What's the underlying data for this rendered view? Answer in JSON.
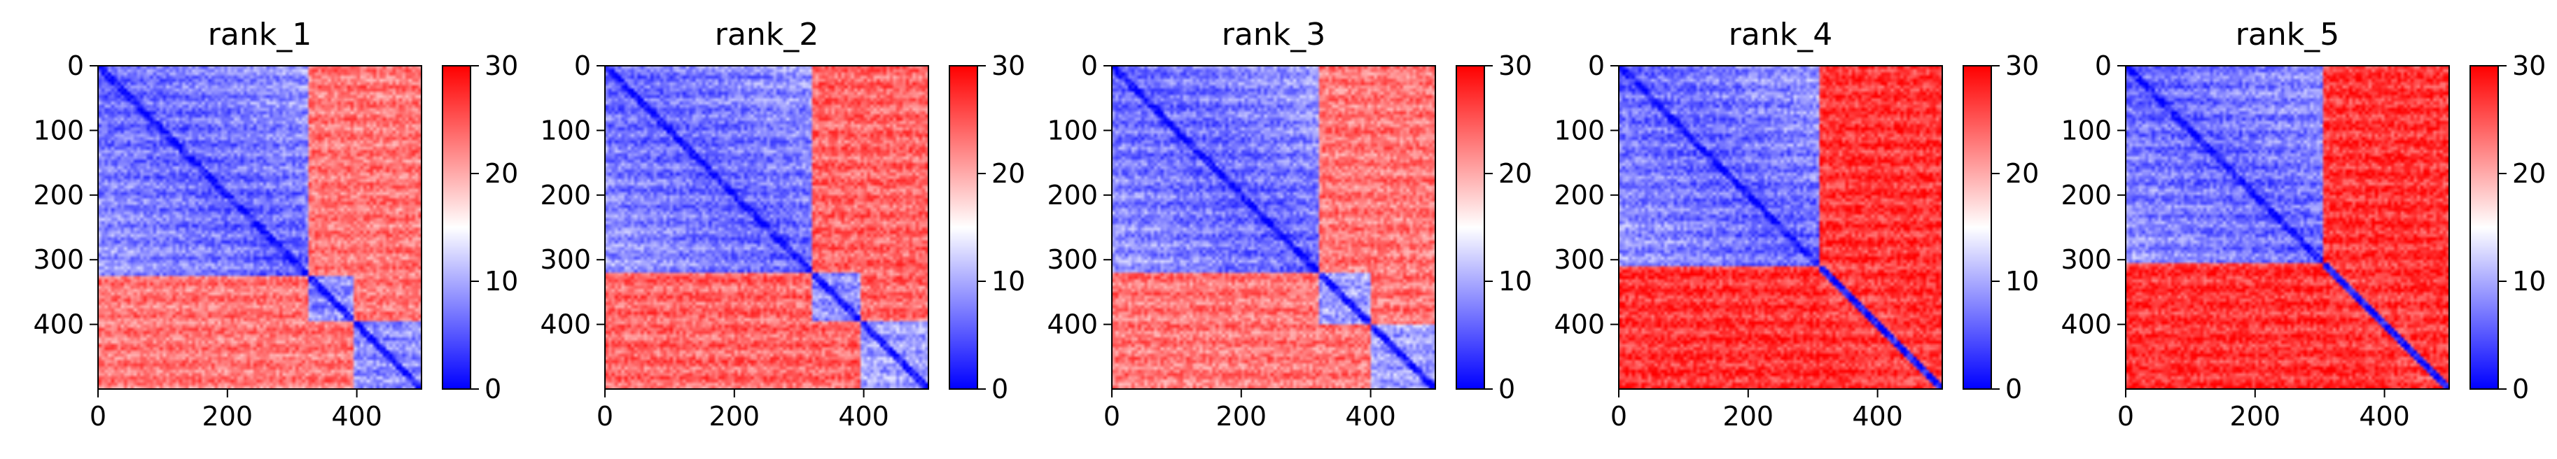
{
  "chart_data": [
    {
      "type": "heatmap",
      "title": "rank_1",
      "x_ticks": [
        "0",
        "200",
        "400"
      ],
      "y_ticks": [
        "0",
        "100",
        "200",
        "300",
        "400"
      ],
      "xlim": [
        0,
        500
      ],
      "ylim": [
        500,
        0
      ],
      "colorbar": {
        "range": [
          0,
          30
        ],
        "ticks": [
          "0",
          "10",
          "20",
          "30"
        ],
        "colormap": "bwr",
        "colors": [
          "#0000ff",
          "#ffffff",
          "#ff0000"
        ]
      },
      "domains": [
        {
          "start": 0,
          "end": 325,
          "level": 6
        },
        {
          "start": 325,
          "end": 395,
          "level": 8
        },
        {
          "start": 395,
          "end": 500,
          "level": 8
        }
      ],
      "inter_domain_level": 23,
      "value_at_a_glance": "block 0-325 low (blue), off-diagonal high (red)"
    },
    {
      "type": "heatmap",
      "title": "rank_2",
      "x_ticks": [
        "0",
        "200",
        "400"
      ],
      "y_ticks": [
        "0",
        "100",
        "200",
        "300",
        "400"
      ],
      "xlim": [
        0,
        500
      ],
      "ylim": [
        500,
        0
      ],
      "colorbar": {
        "range": [
          0,
          30
        ],
        "ticks": [
          "0",
          "10",
          "20",
          "30"
        ],
        "colormap": "bwr",
        "colors": [
          "#0000ff",
          "#ffffff",
          "#ff0000"
        ]
      },
      "domains": [
        {
          "start": 0,
          "end": 320,
          "level": 6
        },
        {
          "start": 320,
          "end": 395,
          "level": 8
        },
        {
          "start": 395,
          "end": 500,
          "level": 9
        }
      ],
      "inter_domain_level": 24,
      "value_at_a_glance": "block 0-320 low (blue), off-diagonal high (red)"
    },
    {
      "type": "heatmap",
      "title": "rank_3",
      "x_ticks": [
        "0",
        "200",
        "400"
      ],
      "y_ticks": [
        "0",
        "100",
        "200",
        "300",
        "400"
      ],
      "xlim": [
        0,
        500
      ],
      "ylim": [
        500,
        0
      ],
      "colorbar": {
        "range": [
          0,
          30
        ],
        "ticks": [
          "0",
          "10",
          "20",
          "30"
        ],
        "colormap": "bwr",
        "colors": [
          "#0000ff",
          "#ffffff",
          "#ff0000"
        ]
      },
      "domains": [
        {
          "start": 0,
          "end": 320,
          "level": 6
        },
        {
          "start": 320,
          "end": 400,
          "level": 9
        },
        {
          "start": 400,
          "end": 500,
          "level": 9
        }
      ],
      "inter_domain_level": 23,
      "value_at_a_glance": "block 0-320 low (blue), off-diagonal high (red)"
    },
    {
      "type": "heatmap",
      "title": "rank_4",
      "x_ticks": [
        "0",
        "200",
        "400"
      ],
      "y_ticks": [
        "0",
        "100",
        "200",
        "300",
        "400"
      ],
      "xlim": [
        0,
        500
      ],
      "ylim": [
        500,
        0
      ],
      "colorbar": {
        "range": [
          0,
          30
        ],
        "ticks": [
          "0",
          "10",
          "20",
          "30"
        ],
        "colormap": "bwr",
        "colors": [
          "#0000ff",
          "#ffffff",
          "#ff0000"
        ]
      },
      "domains": [
        {
          "start": 0,
          "end": 310,
          "level": 6
        },
        {
          "start": 310,
          "end": 500,
          "level": 26
        }
      ],
      "inter_domain_level": 27,
      "value_at_a_glance": "block 0-310 low (blue), remainder high (red)"
    },
    {
      "type": "heatmap",
      "title": "rank_5",
      "x_ticks": [
        "0",
        "200",
        "400"
      ],
      "y_ticks": [
        "0",
        "100",
        "200",
        "300",
        "400"
      ],
      "xlim": [
        0,
        500
      ],
      "ylim": [
        500,
        0
      ],
      "colorbar": {
        "range": [
          0,
          30
        ],
        "ticks": [
          "0",
          "10",
          "20",
          "30"
        ],
        "colormap": "bwr",
        "colors": [
          "#0000ff",
          "#ffffff",
          "#ff0000"
        ]
      },
      "domains": [
        {
          "start": 0,
          "end": 305,
          "level": 6
        },
        {
          "start": 305,
          "end": 500,
          "level": 26
        }
      ],
      "inter_domain_level": 27,
      "value_at_a_glance": "block 0-305 low (blue), remainder high (red)"
    }
  ]
}
